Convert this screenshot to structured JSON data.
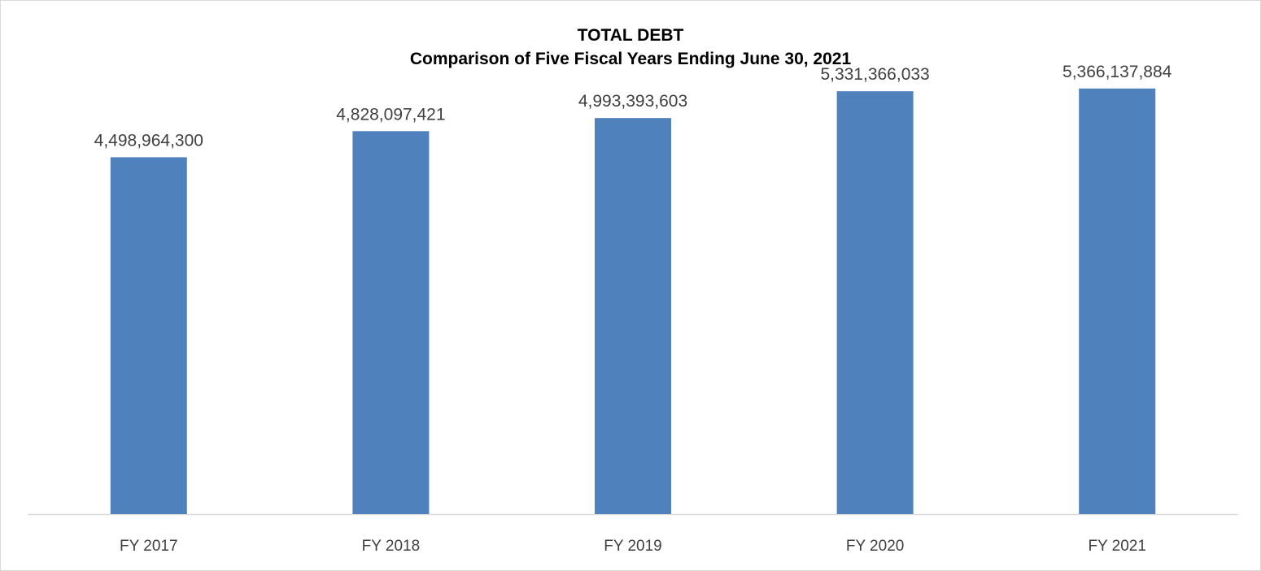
{
  "chart_data": {
    "type": "bar",
    "title": "TOTAL DEBT",
    "subtitle": "Comparison of Five Fiscal Years Ending June 30, 2021",
    "categories": [
      "FY 2017",
      "FY 2018",
      "FY 2019",
      "FY 2020",
      "FY 2021"
    ],
    "values": [
      4498964300,
      4828097421,
      4993393603,
      5331366033,
      5366137884
    ],
    "data_labels": [
      "4,498,964,300",
      "4,828,097,421",
      "4,993,393,603",
      "5,331,366,033",
      "5,366,137,884"
    ],
    "xlabel": "",
    "ylabel": "",
    "ylim": [
      0,
      6000000000
    ],
    "grid": false,
    "legend": "none",
    "bar_color": "#4F81BD",
    "axis_color": "#D9D9D9",
    "text_color": "#404040"
  }
}
